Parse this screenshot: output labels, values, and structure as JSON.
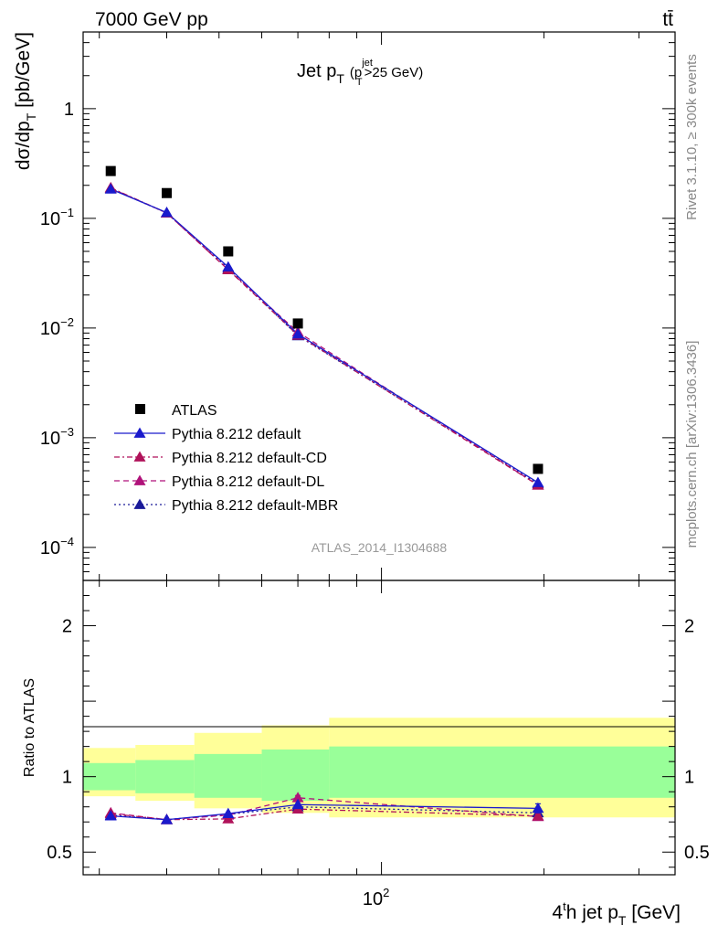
{
  "header": {
    "left": "7000 GeV pp",
    "right": "tt̄"
  },
  "side_labels": {
    "rivet": "Rivet 3.1.10, ≥ 300k events",
    "mcplots": "mcplots.cern.ch [arXiv:1306.3436]"
  },
  "chart_data": {
    "type": "line",
    "title": "Jet p_T (p_T^jet >25 GeV)",
    "title_parts": {
      "main": "Jet p",
      "main_sub": "T",
      "paren_open": "(p",
      "sup": "jet",
      "sub": "T",
      "tail": ">25 GeV)"
    },
    "analysis_label": "ATLAS_2014_I1304688",
    "xlabel": "4^th jet p_T [GeV]",
    "xlabel_parts": {
      "a": "4",
      "a_sup": "t",
      "b": "h jet p",
      "b_sub": "T",
      "c": " [GeV]"
    },
    "x_scale": "log",
    "xlim": [
      28,
      350
    ],
    "x_ticks": [
      {
        "value": 100,
        "base": "10",
        "exp": "2"
      }
    ],
    "top": {
      "ylabel": "dσ/dp_T [pb/GeV]",
      "ylabel_parts": {
        "a": "dσ/dp",
        "a_sub": "T",
        "b": " [pb/GeV]"
      },
      "y_scale": "log",
      "ylim": [
        5e-05,
        5
      ],
      "y_ticks": [
        {
          "value": 1,
          "label": "1"
        },
        {
          "value": 0.1,
          "base": "10",
          "exp": "−1"
        },
        {
          "value": 0.01,
          "base": "10",
          "exp": "−2"
        },
        {
          "value": 0.001,
          "base": "10",
          "exp": "−3"
        },
        {
          "value": 0.0001,
          "base": "10",
          "exp": "−4"
        }
      ]
    },
    "bottom": {
      "ylabel": "Ratio to ATLAS",
      "ylim": [
        0.35,
        2.3
      ],
      "y_ticks": [
        {
          "value": 0.5,
          "label": "0.5"
        },
        {
          "value": 1,
          "label": "1"
        },
        {
          "value": 2,
          "label": "2"
        }
      ]
    },
    "bins": [
      {
        "lo": 28,
        "hi": 35,
        "x": 31.5,
        "band_stat": [
          0.91,
          1.09
        ],
        "band_total": [
          0.87,
          1.19
        ]
      },
      {
        "lo": 35,
        "hi": 45,
        "x": 40,
        "band_stat": [
          0.89,
          1.11
        ],
        "band_total": [
          0.84,
          1.21
        ]
      },
      {
        "lo": 45,
        "hi": 60,
        "x": 52,
        "band_stat": [
          0.86,
          1.15
        ],
        "band_total": [
          0.79,
          1.29
        ]
      },
      {
        "lo": 60,
        "hi": 80,
        "x": 70,
        "band_stat": [
          0.84,
          1.18
        ],
        "band_total": [
          0.76,
          1.34
        ]
      },
      {
        "lo": 80,
        "hi": 350,
        "x": 195,
        "band_stat": [
          0.86,
          1.2
        ],
        "band_total": [
          0.73,
          1.39
        ]
      }
    ],
    "atlas": {
      "name": "ATLAS",
      "values": [
        0.27,
        0.17,
        0.05,
        0.011,
        0.00052
      ]
    },
    "series": [
      {
        "name": "Pythia 8.212 default",
        "color": "#1a1acc",
        "dash": "solid",
        "values": [
          0.185,
          0.113,
          0.036,
          0.0088,
          0.00039
        ],
        "ratio": [
          0.74,
          0.715,
          0.755,
          0.815,
          0.79
        ],
        "ratio_err": [
          0.0,
          0.0,
          0.0,
          0.0,
          0.03
        ]
      },
      {
        "name": "Pythia 8.212 default-CD",
        "color": "#b0125a",
        "dash": "dashdot",
        "values": [
          0.19,
          0.112,
          0.034,
          0.0086,
          0.00037
        ],
        "ratio": [
          0.755,
          0.715,
          0.72,
          0.785,
          0.74
        ],
        "ratio_err": [
          0.0,
          0.0,
          0.01,
          0.01,
          0.02
        ]
      },
      {
        "name": "Pythia 8.212 default-DL",
        "color": "#b0127a",
        "dash": "dashed",
        "values": [
          0.188,
          0.112,
          0.034,
          0.0092,
          0.00037
        ],
        "ratio": [
          0.76,
          0.715,
          0.745,
          0.86,
          0.735
        ],
        "ratio_err": [
          0.0,
          0.0,
          0.01,
          0.015,
          0.02
        ]
      },
      {
        "name": "Pythia 8.212 default-MBR",
        "color": "#1a1a99",
        "dash": "dotted",
        "values": [
          0.187,
          0.112,
          0.035,
          0.0085,
          0.00038
        ],
        "ratio": [
          0.745,
          0.715,
          0.75,
          0.8,
          0.76
        ],
        "ratio_err": [
          0.0,
          0.0,
          0.0,
          0.0,
          0.02
        ]
      }
    ],
    "legend_position": "bottom-left",
    "colors": {
      "band_stat": "#99ff99",
      "band_total": "#ffff99",
      "data": "#000000"
    }
  }
}
